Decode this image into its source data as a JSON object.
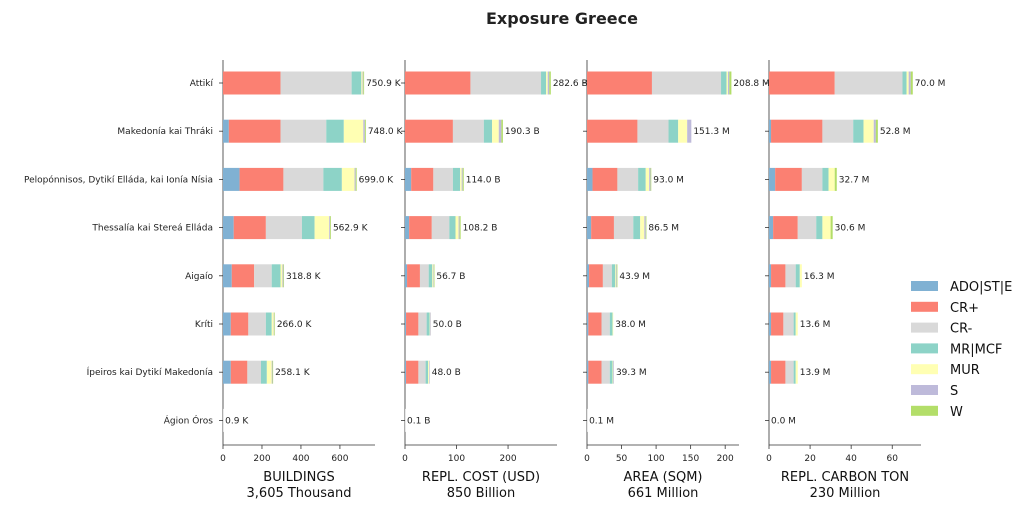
{
  "chart_data": {
    "type": "bar",
    "orientation": "horizontal",
    "stacked": true,
    "title": "Exposure Greece",
    "regions": [
      "Attikí",
      "Makedonía kai Thráki",
      "Pelopónnisos, Dytikí Elláda, kai Ionía Nísia",
      "Thessalía kai Stereá Elláda",
      "Aigaío",
      "Kríti",
      "Ípeiros kai Dytikí Makedonía",
      "Ágion Óros"
    ],
    "legend": {
      "placement": "right",
      "items": [
        {
          "name": "ADO|ST|E",
          "color": "#80b1d3"
        },
        {
          "name": "CR+",
          "color": "#fb8072"
        },
        {
          "name": "CR-",
          "color": "#d9d9d9"
        },
        {
          "name": "MR|MCF",
          "color": "#8dd3c7"
        },
        {
          "name": "MUR",
          "color": "#ffffb3"
        },
        {
          "name": "S",
          "color": "#bebada"
        },
        {
          "name": "W",
          "color": "#b3de69"
        }
      ]
    },
    "panels": [
      {
        "xlabel": "BUILDINGS",
        "xsublabel": "3,605 Thousand",
        "xlim": [
          0,
          780
        ],
        "xticks": [
          0,
          200,
          400,
          600
        ],
        "totals": [
          "750.9 K",
          "748.0 K",
          "699.0 K",
          "562.9 K",
          "318.8 K",
          "266.0 K",
          "258.1 K",
          "0.9 K"
        ],
        "values": [
          [
            0,
            295,
            365,
            50,
            6,
            4,
            4
          ],
          [
            30,
            265,
            235,
            90,
            100,
            8,
            5
          ],
          [
            85,
            225,
            205,
            95,
            65,
            6,
            5
          ],
          [
            55,
            165,
            185,
            65,
            75,
            5,
            4
          ],
          [
            45,
            115,
            90,
            45,
            10,
            5,
            3
          ],
          [
            40,
            90,
            90,
            30,
            10,
            3,
            3
          ],
          [
            40,
            85,
            70,
            30,
            25,
            4,
            3
          ],
          [
            0,
            0,
            0.9,
            0,
            0,
            0,
            0
          ]
        ]
      },
      {
        "xlabel": "REPL. COST (USD)",
        "xsublabel": "850 Billion",
        "xlim": [
          0,
          295
        ],
        "xticks": [
          0,
          100,
          200
        ],
        "totals": [
          "282.6 B",
          "190.3 B",
          "114.0 B",
          "108.2 B",
          "56.7 B",
          "50.0 B",
          "48.0 B",
          "0.1 B"
        ],
        "values": [
          [
            0,
            127,
            137,
            10,
            3,
            3,
            3
          ],
          [
            0,
            93,
            60,
            16,
            13,
            5,
            3
          ],
          [
            12,
            43,
            38,
            14,
            3,
            2,
            2
          ],
          [
            8,
            44,
            34,
            12,
            6,
            2,
            2
          ],
          [
            4,
            25,
            17,
            7,
            2,
            1,
            1
          ],
          [
            2,
            24,
            16,
            6,
            1,
            1,
            0
          ],
          [
            2,
            24,
            14,
            5,
            2,
            1,
            0
          ],
          [
            0,
            0,
            0.1,
            0,
            0,
            0,
            0
          ]
        ]
      },
      {
        "xlabel": "AREA (SQM)",
        "xsublabel": "661 Million",
        "xlim": [
          0,
          220
        ],
        "xticks": [
          0,
          50,
          100,
          150,
          200
        ],
        "totals": [
          "208.8 M",
          "151.3 M",
          "93.0 M",
          "86.5 M",
          "43.9 M",
          "38.0 M",
          "39.3 M",
          "0.1 M"
        ],
        "values": [
          [
            0,
            94,
            100,
            8,
            2,
            2,
            3
          ],
          [
            0,
            73,
            45,
            14,
            13,
            6,
            0
          ],
          [
            8,
            36,
            30,
            11,
            5,
            2,
            1
          ],
          [
            6,
            33,
            28,
            10,
            6,
            2,
            1
          ],
          [
            3,
            20,
            13,
            5,
            1,
            1,
            1
          ],
          [
            2,
            19,
            12,
            4,
            1,
            0,
            0
          ],
          [
            2,
            19,
            12,
            4,
            1,
            1,
            0
          ],
          [
            0,
            0,
            0.1,
            0,
            0,
            0,
            0
          ]
        ]
      },
      {
        "xlabel": "REPL. CARBON TON",
        "xsublabel": "230 Million",
        "xlim": [
          0,
          74
        ],
        "xticks": [
          0,
          20,
          40,
          60
        ],
        "totals": [
          "70.0 M",
          "52.8 M",
          "32.7 M",
          "30.6 M",
          "16.3 M",
          "13.6 M",
          "13.9 M",
          "0.0 M"
        ],
        "values": [
          [
            0,
            32,
            33,
            2,
            1,
            1,
            1
          ],
          [
            1,
            25,
            15,
            5,
            5,
            1,
            1
          ],
          [
            3,
            13,
            10,
            3,
            3,
            0,
            1
          ],
          [
            2,
            12,
            9,
            3,
            4,
            0,
            1
          ],
          [
            1,
            7,
            5,
            2,
            1,
            0,
            0
          ],
          [
            1,
            6,
            5,
            1,
            1,
            0,
            0
          ],
          [
            1,
            7,
            4,
            1,
            1,
            0,
            0
          ],
          [
            0,
            0,
            0,
            0,
            0,
            0,
            0
          ]
        ]
      }
    ]
  }
}
